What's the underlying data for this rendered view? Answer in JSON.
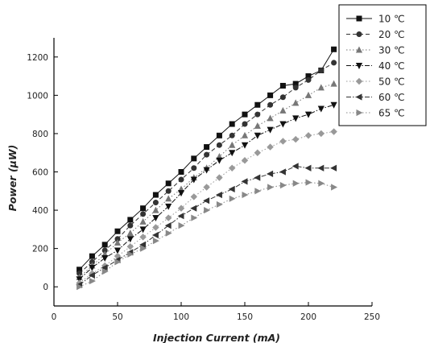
{
  "chart_data": {
    "type": "line",
    "title": "",
    "xlabel": "Injection Current (mA)",
    "ylabel": "Power (μW)",
    "xlim": [
      0,
      250
    ],
    "ylim": [
      -100,
      1300
    ],
    "xticks": [
      "0",
      "50",
      "100",
      "150",
      "200",
      "250"
    ],
    "yticks": [
      "0",
      "200",
      "400",
      "600",
      "800",
      "1000",
      "1200"
    ],
    "legend_position": "top-right",
    "grid": false,
    "x": [
      20,
      30,
      40,
      50,
      60,
      70,
      80,
      90,
      100,
      110,
      120,
      130,
      140,
      150,
      160,
      170,
      180,
      190,
      200,
      210,
      220
    ],
    "series": [
      {
        "name": "10 ℃",
        "marker": "square",
        "dash": "solid",
        "color": "#111111",
        "values": [
          90,
          160,
          220,
          290,
          350,
          410,
          480,
          540,
          600,
          670,
          730,
          790,
          850,
          900,
          950,
          1000,
          1050,
          1060,
          1100,
          1130,
          1240
        ]
      },
      {
        "name": "20 ℃",
        "marker": "circle",
        "dash": "dash",
        "color": "#333333",
        "values": [
          70,
          130,
          190,
          250,
          320,
          380,
          440,
          500,
          560,
          620,
          690,
          740,
          790,
          850,
          900,
          950,
          990,
          1040,
          1080,
          1130,
          1170
        ]
      },
      {
        "name": "30 ℃",
        "marker": "triangle-up",
        "dash": "dot",
        "color": "#777777",
        "values": [
          50,
          110,
          170,
          230,
          280,
          340,
          400,
          460,
          510,
          570,
          620,
          680,
          740,
          790,
          840,
          880,
          920,
          960,
          1000,
          1040,
          1060
        ]
      },
      {
        "name": "40 ℃",
        "marker": "triangle-down",
        "dash": "dashdot",
        "color": "#111111",
        "values": [
          40,
          100,
          150,
          190,
          250,
          300,
          360,
          420,
          490,
          560,
          610,
          660,
          700,
          740,
          790,
          820,
          850,
          880,
          900,
          930,
          950
        ]
      },
      {
        "name": "50 ℃",
        "marker": "diamond",
        "dash": "dot",
        "color": "#999999",
        "values": [
          20,
          70,
          110,
          160,
          210,
          260,
          310,
          360,
          410,
          470,
          520,
          570,
          620,
          660,
          700,
          730,
          760,
          770,
          790,
          800,
          810
        ]
      },
      {
        "name": "60 ℃",
        "marker": "triangle-left",
        "dash": "dashdot",
        "color": "#333333",
        "values": [
          10,
          60,
          100,
          140,
          180,
          220,
          270,
          320,
          370,
          410,
          450,
          480,
          510,
          550,
          570,
          590,
          600,
          630,
          620,
          620,
          620
        ]
      },
      {
        "name": "65 ℃",
        "marker": "triangle-right",
        "dash": "dot",
        "color": "#888888",
        "values": [
          0,
          30,
          80,
          130,
          170,
          200,
          240,
          280,
          320,
          360,
          400,
          430,
          460,
          480,
          500,
          520,
          530,
          540,
          545,
          540,
          520
        ]
      }
    ]
  }
}
